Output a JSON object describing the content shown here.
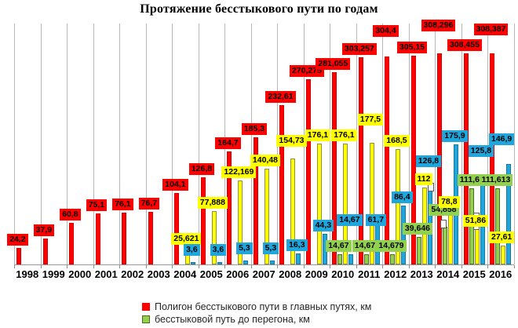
{
  "chart_data": {
    "type": "bar",
    "title": "Протяжение бесстыкового пути по годам",
    "xlabel": "",
    "ylabel": "",
    "ylim": [
      0,
      352
    ],
    "grid": "vertical-category-lines-only",
    "legend_position": "bottom-left",
    "decimal_separator": ",",
    "categories": [
      "1998",
      "1999",
      "2000",
      "2001",
      "2002",
      "2003",
      "2004",
      "2005",
      "2006",
      "2007",
      "2008",
      "2009",
      "2010",
      "2011",
      "2012",
      "2013",
      "2014",
      "2015",
      "2016"
    ],
    "series": [
      {
        "id": "red",
        "name": "Полигон бесстыкового пути в главных путях, км",
        "color": "#FF0000",
        "border_color": "#d40000",
        "values": [
          24.2,
          37.9,
          60.8,
          75.1,
          76.1,
          76.7,
          104.1,
          126.8,
          164.7,
          185.3,
          232.61,
          270.275,
          281.055,
          303.257,
          304.4,
          305.15,
          308.296,
          308.455,
          308.387
        ],
        "labels": [
          "24,2",
          "37,9",
          "60,8",
          "75,1",
          "76,1",
          "76,7",
          "104,1",
          "126,8",
          "164,7",
          "185,3",
          "232,61",
          "270,275",
          "281,055",
          "303,257",
          "304,4",
          "305,15",
          "308,296",
          "308,455",
          "308,387"
        ]
      },
      {
        "id": "green",
        "name": "бесстыковой путь до перегона, км",
        "color": "#92D050",
        "border_color": "#4e6b1e",
        "values": [
          null,
          null,
          null,
          null,
          null,
          null,
          null,
          null,
          null,
          null,
          null,
          null,
          14.67,
          14.67,
          14.679,
          39.646,
          54.858,
          111.6,
          111.613
        ],
        "labels": [
          null,
          null,
          null,
          null,
          null,
          null,
          null,
          null,
          null,
          null,
          null,
          null,
          "14,67",
          "14,67",
          "14,679",
          "39,646",
          "54,858",
          "111,6",
          "111,613"
        ]
      },
      {
        "id": "yellow",
        "name": null,
        "color": "#FFFF00",
        "border_color": "#8f8f3f",
        "values": [
          null,
          null,
          null,
          null,
          null,
          null,
          25.621,
          77.888,
          122.169,
          140.48,
          154.73,
          176.1,
          176.1,
          177.5,
          168.5,
          112,
          78.8,
          51.86,
          27.61
        ],
        "labels": [
          null,
          null,
          null,
          null,
          null,
          null,
          "25,621",
          "77,888",
          "122,169",
          "140,48",
          "154,73",
          "176,1",
          "176,1",
          "177,5",
          "168,5",
          "112",
          "78,8",
          "51,86",
          "27,61"
        ]
      },
      {
        "id": "blue",
        "name": null,
        "color": "#1FA6DC",
        "border_color": "#15789f",
        "values": [
          null,
          null,
          null,
          null,
          null,
          null,
          3.6,
          3.6,
          5.3,
          5.3,
          16.3,
          44.3,
          14.67,
          61.7,
          86.4,
          126.8,
          175.9,
          125.8,
          146.9
        ],
        "labels": [
          null,
          null,
          null,
          null,
          null,
          null,
          "3,6",
          "3,6",
          "5,3",
          "5,3",
          "16,3",
          "44,3",
          "14,67",
          "61,7",
          "86,4",
          "126,8",
          "175,9",
          "125,8",
          "146,9"
        ]
      }
    ],
    "legend": [
      {
        "label": "Полигон бесстыкового пути в главных путях, км",
        "color": "#FF0000",
        "border": "none"
      },
      {
        "label": "бесстыковой путь до перегона, км",
        "color": "#92D050",
        "border": "#4e6b1e"
      }
    ]
  }
}
